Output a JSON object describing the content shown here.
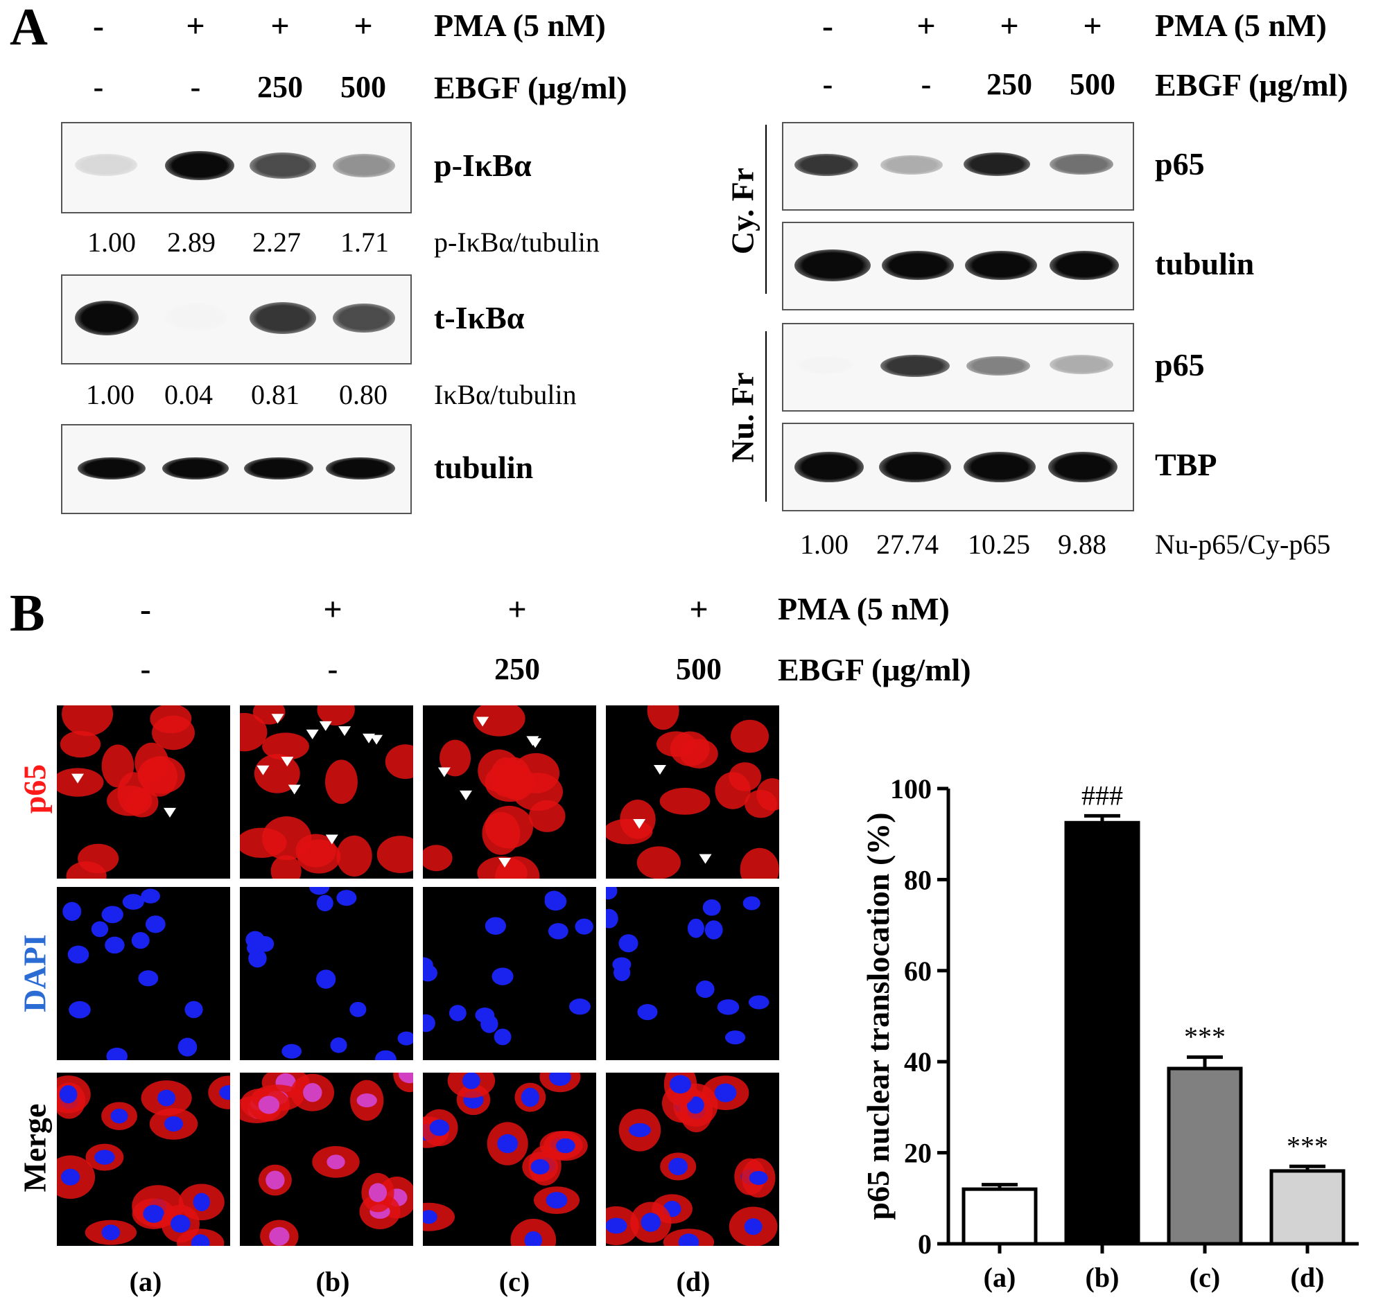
{
  "panel_a": {
    "letter": "A",
    "left": {
      "pma_label": "PMA (5 nM)",
      "ebgf_label": "EBGF (μg/ml)",
      "pma_signs": [
        "-",
        "+",
        "+",
        "+"
      ],
      "ebgf_doses": [
        "-",
        "-",
        "250",
        "500"
      ],
      "blots": [
        {
          "label": "p-IκBα",
          "ratio_label": "p-IκBα/tubulin",
          "ratios": [
            "1.00",
            "2.89",
            "2.27",
            "1.71"
          ],
          "intensity": [
            0.35,
            1.0,
            0.85,
            0.65
          ]
        },
        {
          "label": "t-IκBα",
          "ratio_label": "IκBα/tubulin",
          "ratios": [
            "1.00",
            "0.04",
            "0.81",
            "0.80"
          ],
          "intensity": [
            1.0,
            0.04,
            0.9,
            0.85
          ]
        },
        {
          "label": "tubulin",
          "ratio_label": "",
          "ratios": [],
          "intensity": [
            1.0,
            1.0,
            1.0,
            1.0
          ]
        }
      ]
    },
    "right": {
      "pma_label": "PMA (5 nM)",
      "ebgf_label": "EBGF (μg/ml)",
      "pma_signs": [
        "-",
        "+",
        "+",
        "+"
      ],
      "ebgf_doses": [
        "-",
        "-",
        "250",
        "500"
      ],
      "cy_label": "Cy. Fr",
      "nu_label": "Nu. Fr",
      "blots": [
        {
          "label": "p65",
          "intensity": [
            0.9,
            0.55,
            0.95,
            0.75
          ]
        },
        {
          "label": "tubulin",
          "intensity": [
            1.0,
            1.0,
            1.0,
            1.0
          ]
        },
        {
          "label": "p65",
          "intensity": [
            0.05,
            0.9,
            0.7,
            0.55
          ]
        },
        {
          "label": "TBP",
          "intensity": [
            1.0,
            1.0,
            1.0,
            1.0
          ]
        }
      ],
      "ratio_label": "Nu-p65/Cy-p65",
      "ratios": [
        "1.00",
        "27.74",
        "10.25",
        "9.88"
      ]
    }
  },
  "panel_b": {
    "letter": "B",
    "pma_label": "PMA (5 nM)",
    "ebgf_label": "EBGF (μg/ml)",
    "pma_signs": [
      "-",
      "+",
      "+",
      "+"
    ],
    "ebgf_doses": [
      "-",
      "-",
      "250",
      "500"
    ],
    "row_labels": [
      "p65",
      "DAPI",
      "Merge"
    ],
    "row_colors": [
      "#ff1a1a",
      "#2a6bd4",
      "#000000"
    ],
    "column_labels": [
      "(a)",
      "(b)",
      "(c)",
      "(d)"
    ]
  },
  "chart_data": {
    "type": "bar",
    "categories": [
      "(a)",
      "(b)",
      "(c)",
      "(d)"
    ],
    "values": [
      12,
      92.5,
      38.5,
      16
    ],
    "errors": [
      1,
      1.5,
      2.5,
      1
    ],
    "bar_colors": [
      "#ffffff",
      "#000000",
      "#808080",
      "#d3d3d3"
    ],
    "annotations": [
      "",
      "###",
      "***",
      "***"
    ],
    "title": "",
    "xlabel": "",
    "ylabel": "p65 nuclear translocation (%)",
    "ylim": [
      0,
      100
    ],
    "yticks": [
      0,
      20,
      40,
      60,
      80,
      100
    ],
    "grid": false
  }
}
